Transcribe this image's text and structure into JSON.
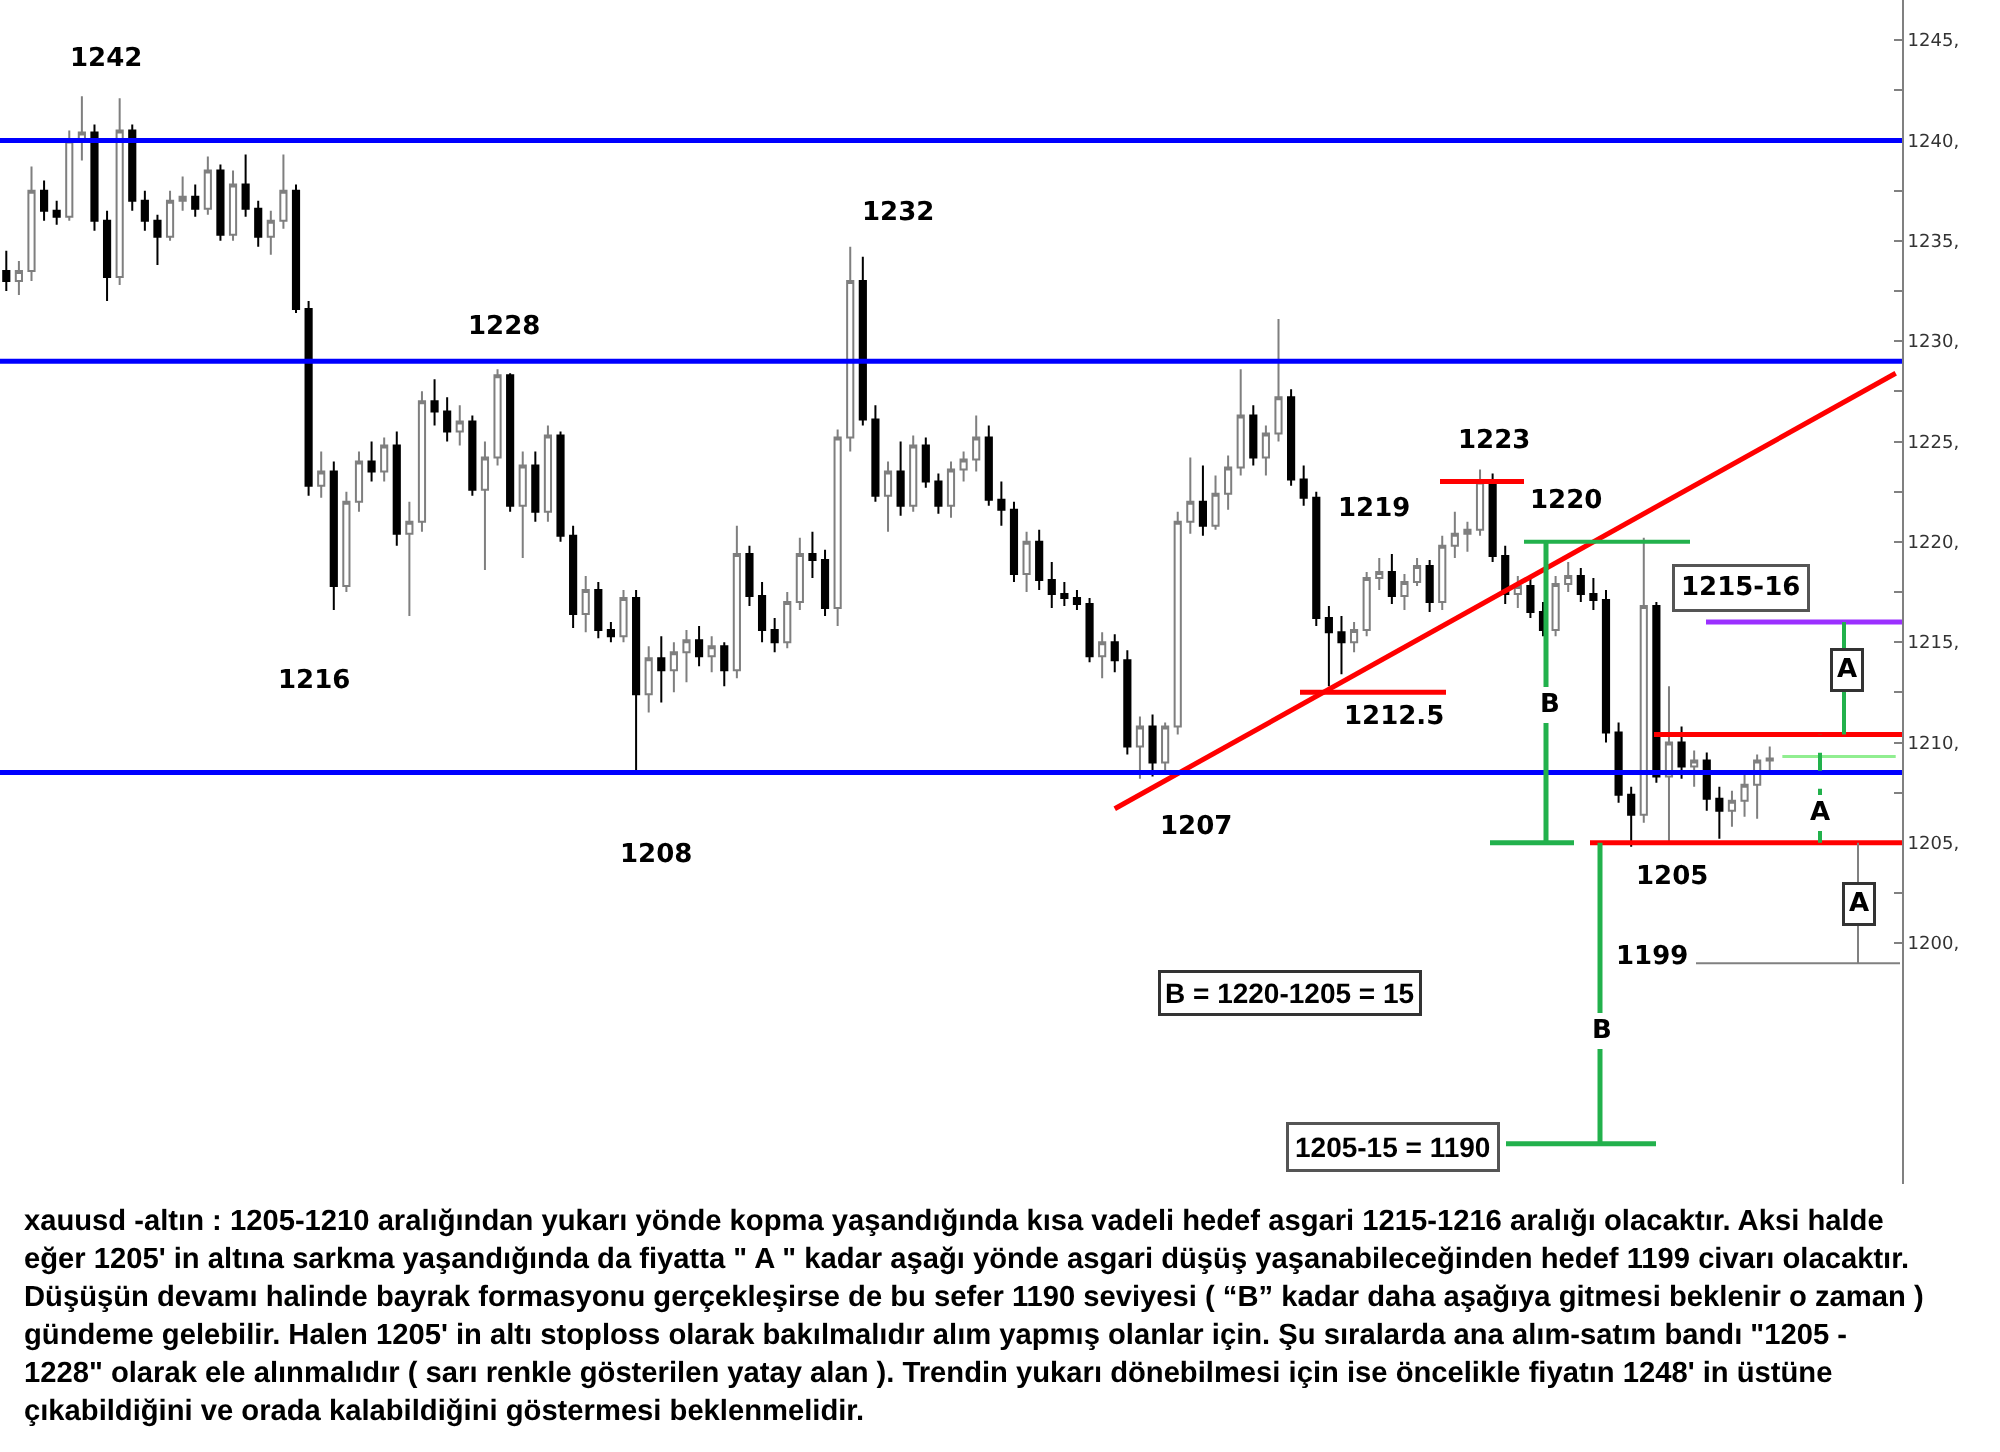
{
  "chart_data": {
    "type": "candlestick",
    "categories": [
      null,
      null,
      null,
      null,
      null,
      null,
      null,
      null,
      null,
      null,
      null,
      null,
      null,
      null,
      null,
      null,
      null,
      null,
      null,
      null,
      null,
      null,
      null,
      null,
      null,
      null,
      null,
      null,
      null,
      null,
      null,
      null,
      null,
      null,
      null,
      null,
      null,
      null,
      null,
      null,
      null,
      null,
      null,
      null,
      null,
      null,
      null,
      null,
      null,
      null,
      null,
      null,
      null,
      null,
      null,
      null,
      null,
      null,
      null,
      null,
      null,
      null,
      null,
      null,
      null,
      null,
      null,
      null,
      null,
      null,
      null,
      null,
      null,
      null,
      null,
      null,
      null,
      null,
      null,
      null,
      null,
      null,
      null,
      null,
      null,
      null,
      null,
      null,
      null,
      null,
      null,
      null,
      null,
      null,
      null,
      null,
      null,
      null,
      null,
      null,
      null,
      null,
      null,
      null,
      null,
      null,
      null,
      null,
      null,
      null,
      null,
      null,
      null,
      null,
      null,
      null,
      null,
      null,
      null,
      null,
      null,
      null,
      null,
      null,
      null,
      null,
      null,
      null,
      null,
      null,
      null,
      null,
      null,
      null,
      null,
      null,
      null,
      null,
      null,
      null,
      null,
      null,
      null,
      null,
      null,
      null,
      null,
      null,
      null,
      null,
      null
    ],
    "ohlc": [
      [
        1233.5,
        1234.5,
        1232.5,
        1233
      ],
      [
        1233,
        1234,
        1232.3,
        1233.5
      ],
      [
        1233.5,
        1238.7,
        1233,
        1237.5
      ],
      [
        1237.5,
        1238,
        1236,
        1236.5
      ],
      [
        1236.5,
        1237,
        1235.8,
        1236.2
      ],
      [
        1236.2,
        1240.5,
        1236,
        1240
      ],
      [
        1240,
        1242.2,
        1239,
        1240.4
      ],
      [
        1240.4,
        1240.8,
        1235.5,
        1236
      ],
      [
        1236,
        1236.5,
        1232,
        1233.2
      ],
      [
        1233.2,
        1242.1,
        1232.8,
        1240.5
      ],
      [
        1240.5,
        1240.8,
        1236.5,
        1237
      ],
      [
        1237,
        1237.5,
        1235.5,
        1236
      ],
      [
        1236,
        1236.3,
        1233.8,
        1235.2
      ],
      [
        1235.2,
        1237.5,
        1235,
        1237
      ],
      [
        1237,
        1238.2,
        1236.5,
        1237.2
      ],
      [
        1237.2,
        1237.8,
        1236.2,
        1236.6
      ],
      [
        1236.6,
        1239.2,
        1236.3,
        1238.5
      ],
      [
        1238.5,
        1238.8,
        1235,
        1235.3
      ],
      [
        1235.3,
        1238.5,
        1235,
        1237.8
      ],
      [
        1237.8,
        1239.3,
        1236.2,
        1236.6
      ],
      [
        1236.6,
        1237,
        1234.7,
        1235.2
      ],
      [
        1235.2,
        1236.5,
        1234.3,
        1236
      ],
      [
        1236,
        1239.3,
        1235.6,
        1237.5
      ],
      [
        1237.5,
        1237.8,
        1231.4,
        1231.6
      ],
      [
        1231.6,
        1232,
        1222.3,
        1222.8
      ],
      [
        1222.8,
        1224.5,
        1222.2,
        1223.5
      ],
      [
        1223.5,
        1224,
        1216.6,
        1217.8
      ],
      [
        1217.8,
        1222.5,
        1217.5,
        1222
      ],
      [
        1222,
        1224.5,
        1221.5,
        1224
      ],
      [
        1224,
        1225,
        1223,
        1223.5
      ],
      [
        1223.5,
        1225.2,
        1223,
        1224.8
      ],
      [
        1224.8,
        1225.5,
        1219.8,
        1220.4
      ],
      [
        1220.4,
        1222,
        1216.3,
        1221
      ],
      [
        1221,
        1227.5,
        1220.5,
        1227
      ],
      [
        1227,
        1228.1,
        1225.8,
        1226.5
      ],
      [
        1226.5,
        1227.2,
        1225,
        1225.5
      ],
      [
        1225.5,
        1226.8,
        1224.8,
        1226
      ],
      [
        1226,
        1226.3,
        1222.3,
        1222.6
      ],
      [
        1222.6,
        1225,
        1218.6,
        1224.2
      ],
      [
        1224.2,
        1228.6,
        1223.8,
        1228.3
      ],
      [
        1228.3,
        1228.4,
        1221.5,
        1221.8
      ],
      [
        1221.8,
        1224.5,
        1219.2,
        1223.8
      ],
      [
        1223.8,
        1224.5,
        1221,
        1221.5
      ],
      [
        1221.5,
        1225.8,
        1221,
        1225.3
      ],
      [
        1225.3,
        1225.5,
        1220,
        1220.3
      ],
      [
        1220.3,
        1220.8,
        1215.7,
        1216.4
      ],
      [
        1216.4,
        1218.3,
        1215.5,
        1217.6
      ],
      [
        1217.6,
        1218,
        1215.2,
        1215.6
      ],
      [
        1215.6,
        1216,
        1215,
        1215.3
      ],
      [
        1215.3,
        1217.6,
        1215,
        1217.2
      ],
      [
        1217.2,
        1217.6,
        1208.6,
        1212.4
      ],
      [
        1212.4,
        1214.8,
        1211.5,
        1214.2
      ],
      [
        1214.2,
        1215.3,
        1212,
        1213.6
      ],
      [
        1213.6,
        1215,
        1212.5,
        1214.5
      ],
      [
        1214.5,
        1215.6,
        1213,
        1215.1
      ],
      [
        1215.1,
        1215.8,
        1213.8,
        1214.3
      ],
      [
        1214.3,
        1215.3,
        1213.5,
        1214.8
      ],
      [
        1214.8,
        1215,
        1212.8,
        1213.6
      ],
      [
        1213.6,
        1220.8,
        1213.2,
        1219.4
      ],
      [
        1219.4,
        1219.8,
        1216.8,
        1217.3
      ],
      [
        1217.3,
        1218,
        1215,
        1215.6
      ],
      [
        1215.6,
        1216.2,
        1214.5,
        1215
      ],
      [
        1215,
        1217.5,
        1214.7,
        1217
      ],
      [
        1217,
        1220.2,
        1216.6,
        1219.4
      ],
      [
        1219.4,
        1220.5,
        1218.2,
        1219.1
      ],
      [
        1219.1,
        1219.6,
        1216.3,
        1216.7
      ],
      [
        1216.7,
        1225.6,
        1215.8,
        1225.2
      ],
      [
        1225.2,
        1234.7,
        1224.5,
        1233
      ],
      [
        1233,
        1234.2,
        1225.8,
        1226.1
      ],
      [
        1226.1,
        1226.8,
        1222,
        1222.3
      ],
      [
        1222.3,
        1224,
        1220.5,
        1223.5
      ],
      [
        1223.5,
        1225,
        1221.3,
        1221.8
      ],
      [
        1221.8,
        1225.3,
        1221.5,
        1224.8
      ],
      [
        1224.8,
        1225.2,
        1222.7,
        1223
      ],
      [
        1223,
        1223.4,
        1221.4,
        1221.8
      ],
      [
        1221.8,
        1224,
        1221.2,
        1223.6
      ],
      [
        1223.6,
        1224.5,
        1223,
        1224.1
      ],
      [
        1224.1,
        1226.3,
        1223.5,
        1225.2
      ],
      [
        1225.2,
        1225.8,
        1221.8,
        1222.1
      ],
      [
        1222.1,
        1223,
        1220.8,
        1221.6
      ],
      [
        1221.6,
        1222,
        1218,
        1218.4
      ],
      [
        1218.4,
        1220.5,
        1217.5,
        1220
      ],
      [
        1220,
        1220.6,
        1217.6,
        1218.1
      ],
      [
        1218.1,
        1219,
        1216.7,
        1217.4
      ],
      [
        1217.4,
        1218,
        1216.8,
        1217.2
      ],
      [
        1217.2,
        1217.6,
        1216.6,
        1216.9
      ],
      [
        1216.9,
        1217.2,
        1214,
        1214.3
      ],
      [
        1214.3,
        1215.5,
        1213.2,
        1215
      ],
      [
        1215,
        1215.4,
        1213.5,
        1214.1
      ],
      [
        1214.1,
        1214.6,
        1209.4,
        1209.8
      ],
      [
        1209.8,
        1211.3,
        1208.2,
        1210.8
      ],
      [
        1210.8,
        1211.4,
        1208.3,
        1209
      ],
      [
        1209,
        1211,
        1208.6,
        1210.8
      ],
      [
        1210.8,
        1221.5,
        1210.4,
        1221
      ],
      [
        1221,
        1224.2,
        1220.4,
        1222
      ],
      [
        1222,
        1223.8,
        1220.3,
        1220.8
      ],
      [
        1220.8,
        1223.3,
        1220.6,
        1222.4
      ],
      [
        1222.4,
        1224.3,
        1221.6,
        1223.7
      ],
      [
        1223.7,
        1228.6,
        1223.3,
        1226.3
      ],
      [
        1226.3,
        1226.8,
        1223.8,
        1224.2
      ],
      [
        1224.2,
        1225.8,
        1223.3,
        1225.4
      ],
      [
        1225.4,
        1231.1,
        1225,
        1227.2
      ],
      [
        1227.2,
        1227.6,
        1222.8,
        1223.1
      ],
      [
        1223.1,
        1223.8,
        1221.8,
        1222.2
      ],
      [
        1222.2,
        1222.5,
        1215.8,
        1216.2
      ],
      [
        1216.2,
        1216.8,
        1212.8,
        1215.5
      ],
      [
        1215.5,
        1216.3,
        1213.4,
        1215
      ],
      [
        1215,
        1216,
        1214.5,
        1215.6
      ],
      [
        1215.6,
        1218.5,
        1215.3,
        1218.2
      ],
      [
        1218.2,
        1219.2,
        1217.6,
        1218.5
      ],
      [
        1218.5,
        1219.4,
        1216.9,
        1217.3
      ],
      [
        1217.3,
        1218.4,
        1216.6,
        1218
      ],
      [
        1218,
        1219.2,
        1217.8,
        1218.8
      ],
      [
        1218.8,
        1219.1,
        1216.5,
        1217
      ],
      [
        1217,
        1220.3,
        1216.6,
        1219.8
      ],
      [
        1219.8,
        1221.5,
        1219.2,
        1220.4
      ],
      [
        1220.4,
        1221,
        1219.5,
        1220.6
      ],
      [
        1220.6,
        1223.6,
        1220.3,
        1223
      ],
      [
        1223,
        1223.4,
        1219,
        1219.3
      ],
      [
        1219.3,
        1219.8,
        1216.9,
        1217.4
      ],
      [
        1217.4,
        1218.3,
        1216.7,
        1217.8
      ],
      [
        1217.8,
        1218.2,
        1216.2,
        1216.5
      ],
      [
        1216.5,
        1217,
        1215.3,
        1215.6
      ],
      [
        1215.6,
        1218.3,
        1215.3,
        1217.9
      ],
      [
        1217.9,
        1219,
        1217.5,
        1218.3
      ],
      [
        1218.3,
        1218.7,
        1217,
        1217.4
      ],
      [
        1217.4,
        1218.2,
        1216.6,
        1217.1
      ],
      [
        1217.1,
        1217.6,
        1210,
        1210.5
      ],
      [
        1210.5,
        1211,
        1207,
        1207.4
      ],
      [
        1207.4,
        1207.8,
        1204.8,
        1206.4
      ],
      [
        1206.4,
        1220.2,
        1206,
        1216.8
      ],
      [
        1216.8,
        1217,
        1208,
        1208.3
      ],
      [
        1208.3,
        1212.8,
        1205,
        1210
      ],
      [
        1210,
        1210.8,
        1208.2,
        1208.8
      ],
      [
        1208.8,
        1209.6,
        1207.8,
        1209.1
      ],
      [
        1209.1,
        1209.5,
        1206.6,
        1207.2
      ],
      [
        1207.2,
        1207.8,
        1205.2,
        1206.6
      ],
      [
        1206.6,
        1207.6,
        1205.8,
        1207.1
      ],
      [
        1207.1,
        1208.5,
        1206.3,
        1207.9
      ],
      [
        1207.9,
        1209.4,
        1206.2,
        1209.1
      ],
      [
        1209.1,
        1209.8,
        1208.5,
        1209.2
      ],
      null,
      null,
      null,
      null,
      null,
      null,
      null,
      null,
      null,
      null
    ],
    "series": [
      {
        "type": "line",
        "color": "#ff0000",
        "values": [
          null,
          null,
          null,
          null,
          null,
          null,
          null,
          null,
          null,
          null,
          null,
          null,
          null,
          null,
          null,
          null,
          null,
          null,
          null,
          null,
          null,
          null,
          null,
          null,
          null,
          null,
          null,
          null,
          null,
          null,
          null,
          null,
          null,
          null,
          null,
          null,
          null,
          null,
          null,
          null,
          null,
          null,
          null,
          null,
          null,
          null,
          null,
          null,
          null,
          null,
          null,
          null,
          null,
          null,
          null,
          null,
          null,
          null,
          null,
          null,
          null,
          null,
          null,
          null,
          null,
          null,
          null,
          null,
          null,
          null,
          null,
          null,
          null,
          null,
          null,
          null,
          null,
          null,
          null,
          null,
          null,
          null,
          null,
          null,
          null,
          null,
          null,
          null,
          1206.7,
          null,
          null,
          null,
          null,
          null,
          null,
          null,
          null,
          null,
          null,
          null,
          null,
          null,
          null,
          null,
          null,
          null,
          null,
          null,
          null,
          null,
          null,
          null,
          null,
          null,
          null,
          null,
          null,
          null,
          null,
          null,
          null,
          null,
          null,
          null,
          null,
          null,
          null,
          null,
          null,
          null,
          null,
          null,
          null,
          null,
          null,
          null,
          null,
          null,
          null,
          null,
          null,
          null,
          null,
          null,
          null,
          null,
          null,
          null,
          null,
          null,
          1228.4
        ]
      },
      {
        "type": "line",
        "color": "#90ee90",
        "values": [
          null,
          null,
          null,
          null,
          null,
          null,
          null,
          null,
          null,
          null,
          null,
          null,
          null,
          null,
          null,
          null,
          null,
          null,
          null,
          null,
          null,
          null,
          null,
          null,
          null,
          null,
          null,
          null,
          null,
          null,
          null,
          null,
          null,
          null,
          null,
          null,
          null,
          null,
          null,
          null,
          null,
          null,
          null,
          null,
          null,
          null,
          null,
          null,
          null,
          null,
          null,
          null,
          null,
          null,
          null,
          null,
          null,
          null,
          null,
          null,
          null,
          null,
          null,
          null,
          null,
          null,
          null,
          null,
          null,
          null,
          null,
          null,
          null,
          null,
          null,
          null,
          null,
          null,
          null,
          null,
          null,
          null,
          null,
          null,
          null,
          null,
          null,
          null,
          null,
          null,
          null,
          null,
          null,
          null,
          null,
          null,
          null,
          null,
          null,
          null,
          null,
          null,
          null,
          null,
          null,
          null,
          null,
          null,
          null,
          null,
          null,
          null,
          null,
          null,
          null,
          null,
          null,
          null,
          null,
          null,
          null,
          null,
          null,
          null,
          null,
          null,
          null,
          null,
          null,
          null,
          null,
          null,
          null,
          null,
          null,
          null,
          null,
          null,
          null,
          null,
          null,
          1209.3,
          1209.3,
          1209.3,
          1209.3,
          1209.3,
          1209.3,
          1209.3,
          1209.3,
          1209.3,
          1209.3
        ]
      }
    ],
    "ylim": [
      1188,
      1247
    ],
    "yticks": [
      {
        "value": 1200,
        "label": "1200,"
      },
      {
        "value": 1202.5,
        "label": null
      },
      {
        "value": 1205,
        "label": "1205,"
      },
      {
        "value": 1207.5,
        "label": null
      },
      {
        "value": 1210,
        "label": "1210,"
      },
      {
        "value": 1212.5,
        "label": null
      },
      {
        "value": 1215,
        "label": "1215,"
      },
      {
        "value": 1217.5,
        "label": null
      },
      {
        "value": 1220,
        "label": "1220,"
      },
      {
        "value": 1222.5,
        "label": null
      },
      {
        "value": 1225,
        "label": "1225,"
      },
      {
        "value": 1227.5,
        "label": null
      },
      {
        "value": 1230,
        "label": "1230,"
      },
      {
        "value": 1232.5,
        "label": null
      },
      {
        "value": 1235,
        "label": "1235,"
      },
      {
        "value": 1237.5,
        "label": null
      },
      {
        "value": 1240,
        "label": "1240,"
      },
      {
        "value": 1242.5,
        "label": null
      },
      {
        "value": 1245,
        "label": "1245,"
      }
    ],
    "tick_labels": "y",
    "ref_lines": [
      {
        "axis": "y",
        "value": 1240,
        "color": "#0000ff"
      },
      {
        "axis": "y",
        "value": 1229,
        "color": "#0000ff"
      },
      {
        "axis": "y",
        "value": 1208.5,
        "color": "#0000ff"
      },
      {
        "axis": "y",
        "value": 1223,
        "label": "1223",
        "color": "#ff0000"
      },
      {
        "axis": "y",
        "value": 1212.5,
        "label": "1212.5",
        "color": "#ff0000"
      },
      {
        "axis": "y",
        "value": 1220,
        "label": "1220",
        "color": "#22b14c"
      },
      {
        "axis": "y",
        "value": 1205,
        "label": "1205",
        "color": "#ff0000"
      },
      {
        "axis": "y",
        "value": 1210.4,
        "color": "#ff0000"
      },
      {
        "axis": "y",
        "value": 1216,
        "color": "#9b30ff"
      },
      {
        "axis": "y",
        "value": 1199,
        "label": "1199",
        "color": "#808080"
      },
      {
        "axis": "y",
        "value": 1190,
        "label": "1205-15 = 1190",
        "color": "#22b14c"
      }
    ],
    "annotations": [
      "1242",
      "1228",
      "1216",
      "1232",
      "1208",
      "1207",
      "1219",
      "B",
      "A",
      "A",
      "A",
      "B",
      "B = 1220-1205 = 15",
      "1215-16",
      "xauusd -altın : 1205-1210 aralığından yukarı yönde kopma yaşandığında kısa vadeli hedef asgari 1215-1216 aralığı olacaktır. Aksi halde\neğer 1205' in altına sarkma yaşandığında da fiyatta \" A \" kadar aşağı yönde asgari düşüş yaşanabileceğinden hedef 1199 civarı olacaktır.\nDüşüşün devamı halinde bayrak formasyonu gerçekleşirse de bu sefer 1190 seviyesi ( “B” kadar daha aşağıya gitmesi beklenir o zaman )\ngündeme gelebilir. Halen 1205' in altı stoploss olarak bakılmalıdır alım yapmış olanlar için. Şu sıralarda ana alım-satım bandı \"1205 -\n1228\" olarak ele alınmalıdır ( sarı renkle gösterilen yatay alan ). Trendin yukarı dönebilmesi için ise öncelikle fiyatın 1248' in üstüne\nçıkabildiğini ve orada kalabildiğini göstermesi beklenmelidir."
    ]
  }
}
